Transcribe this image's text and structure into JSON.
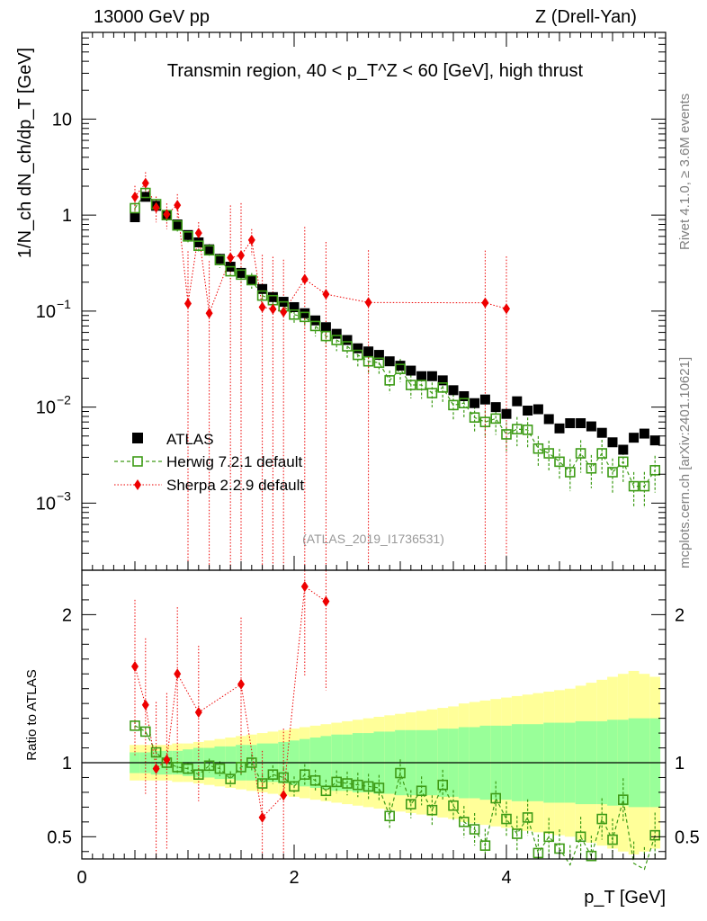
{
  "header": {
    "left": "13000 GeV pp",
    "right": "Z (Drell-Yan)"
  },
  "side_labels": {
    "rivet": "Rivet 4.1.0, ≥ 3.6M events",
    "mcplots": "mcplots.cern.ch [arXiv:2401.10621]"
  },
  "chart_data": {
    "type": "scatter",
    "title": "Transmin region, 40 < p_T^Z < 60 [GeV], high thrust",
    "analysis_id": "(ATLAS_2019_I1736531)",
    "xlabel": "p_T [GeV]",
    "ylabel": "1/N_ch dN_ch/dp_T [GeV]",
    "ratio_ylabel": "Ratio to ATLAS",
    "xlim": [
      0,
      5.5
    ],
    "ylim": [
      0.0002,
      80
    ],
    "ratio_ylim": [
      0.35,
      2.3
    ],
    "x_ticks": [
      "0",
      "2",
      "4"
    ],
    "y_ticks": [
      "10^-3",
      "10^-2",
      "10^-1",
      "1",
      "10"
    ],
    "ratio_ticks": [
      "0.5",
      "1",
      "2"
    ],
    "legend": [
      "ATLAS",
      "Herwig 7.2.1 default",
      "Sherpa 2.2.9 default"
    ],
    "colors": {
      "atlas": "#000000",
      "herwig": "#3d9b16",
      "sherpa": "#ee0000",
      "band_inner": "#99ff99",
      "band_outer": "#ffff99"
    },
    "x": [
      0.5,
      0.6,
      0.7,
      0.8,
      0.9,
      1.0,
      1.1,
      1.2,
      1.3,
      1.4,
      1.5,
      1.6,
      1.7,
      1.8,
      1.9,
      2.0,
      2.1,
      2.2,
      2.3,
      2.4,
      2.5,
      2.6,
      2.7,
      2.8,
      2.9,
      3.0,
      3.1,
      3.2,
      3.3,
      3.4,
      3.5,
      3.6,
      3.7,
      3.8,
      3.9,
      4.0,
      4.1,
      4.2,
      4.3,
      4.4,
      4.5,
      4.6,
      4.7,
      4.8,
      4.9,
      5.0,
      5.1,
      5.2,
      5.3,
      5.4
    ],
    "series": [
      {
        "name": "ATLAS",
        "values": [
          0.95,
          1.55,
          1.25,
          1.0,
          0.8,
          0.62,
          0.52,
          0.44,
          0.35,
          0.29,
          0.25,
          0.21,
          0.17,
          0.14,
          0.125,
          0.11,
          0.095,
          0.08,
          0.068,
          0.058,
          0.05,
          0.041,
          0.038,
          0.035,
          0.03,
          0.027,
          0.024,
          0.021,
          0.021,
          0.019,
          0.015,
          0.013,
          0.011,
          0.012,
          0.01,
          0.0085,
          0.0115,
          0.0092,
          0.0095,
          0.0075,
          0.006,
          0.0068,
          0.0068,
          0.0063,
          0.0054,
          0.0043,
          0.0036,
          0.0048,
          0.0053,
          0.0045
        ]
      },
      {
        "name": "Herwig 7.2.1 default",
        "values": [
          1.18,
          1.7,
          1.3,
          1.0,
          0.78,
          0.6,
          0.48,
          0.43,
          0.34,
          0.26,
          0.24,
          0.21,
          0.145,
          0.13,
          0.112,
          0.092,
          0.087,
          0.07,
          0.055,
          0.05,
          0.043,
          0.035,
          0.03,
          0.029,
          0.019,
          0.025,
          0.017,
          0.017,
          0.014,
          0.016,
          0.0105,
          0.011,
          0.0078,
          0.007,
          0.0076,
          0.0052,
          0.0059,
          0.0058,
          0.0037,
          0.0033,
          0.0027,
          0.0021,
          0.0033,
          0.0023,
          0.0033,
          0.0021,
          0.0027,
          0.0015,
          0.0015,
          0.0022
        ]
      },
      {
        "name": "Sherpa 2.2.9 default",
        "values": [
          1.55,
          2.15,
          1.2,
          1.02,
          1.27,
          0.12,
          0.65,
          0.095,
          0.36,
          0.38,
          0.55,
          0.11,
          0.105,
          0.098,
          0.215,
          0.15,
          0.123,
          0.122,
          0.106
        ],
        "x": [
          0.5,
          0.6,
          0.7,
          0.8,
          0.9,
          1.0,
          1.1,
          1.2,
          1.4,
          1.5,
          1.6,
          1.7,
          1.8,
          1.9,
          2.1,
          2.3,
          2.7,
          3.8,
          4.0
        ]
      }
    ],
    "ratio": {
      "herwig": [
        1.25,
        1.21,
        1.07,
        1.0,
        0.97,
        0.96,
        0.92,
        0.98,
        0.96,
        0.89,
        0.97,
        1.0,
        0.86,
        0.92,
        0.9,
        0.84,
        0.92,
        0.88,
        0.81,
        0.87,
        0.86,
        0.85,
        0.84,
        0.83,
        0.64,
        0.93,
        0.72,
        0.81,
        0.68,
        0.85,
        0.71,
        0.6,
        0.55,
        0.44,
        0.76,
        0.62,
        0.52,
        0.63,
        0.39,
        0.5,
        0.42,
        0.31,
        0.5,
        0.37,
        0.62,
        0.48,
        0.75,
        0.32,
        0.28,
        0.51
      ],
      "sherpa_x": [
        0.5,
        0.6,
        0.7,
        0.8,
        0.9,
        1.1,
        1.5,
        1.7,
        1.9,
        2.1,
        2.3
      ],
      "sherpa": [
        1.65,
        1.39,
        0.96,
        1.02,
        1.6,
        1.34,
        1.53,
        0.63,
        0.78,
        2.19,
        2.09
      ],
      "band_inner": [
        0.07,
        0.07,
        0.08,
        0.08,
        0.08,
        0.09,
        0.1,
        0.1,
        0.11,
        0.11,
        0.12,
        0.12,
        0.13,
        0.13,
        0.14,
        0.15,
        0.16,
        0.17,
        0.18,
        0.19,
        0.19,
        0.2,
        0.2,
        0.21,
        0.21,
        0.22,
        0.22,
        0.22,
        0.22,
        0.23,
        0.23,
        0.24,
        0.24,
        0.25,
        0.25,
        0.25,
        0.26,
        0.26,
        0.26,
        0.27,
        0.27,
        0.27,
        0.28,
        0.28,
        0.28,
        0.29,
        0.29,
        0.3,
        0.3,
        0.3
      ],
      "band_outer": [
        0.12,
        0.12,
        0.12,
        0.12,
        0.13,
        0.13,
        0.14,
        0.15,
        0.16,
        0.17,
        0.18,
        0.19,
        0.2,
        0.21,
        0.22,
        0.23,
        0.24,
        0.25,
        0.26,
        0.27,
        0.28,
        0.29,
        0.3,
        0.31,
        0.32,
        0.33,
        0.34,
        0.35,
        0.36,
        0.37,
        0.38,
        0.4,
        0.41,
        0.42,
        0.43,
        0.44,
        0.45,
        0.46,
        0.47,
        0.48,
        0.49,
        0.5,
        0.52,
        0.54,
        0.56,
        0.58,
        0.6,
        0.62,
        0.6,
        0.58
      ]
    }
  }
}
